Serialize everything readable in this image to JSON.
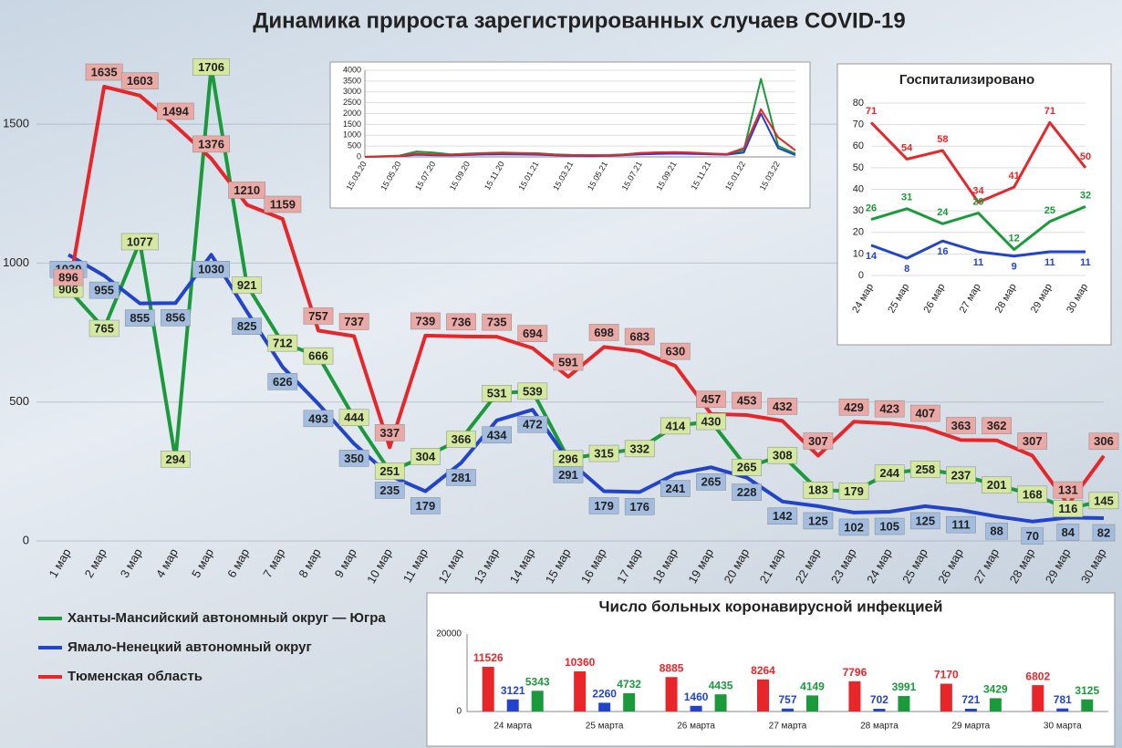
{
  "chart_data": [
    {
      "type": "line",
      "title": "Динамика прироста зарегистрированных случаев COVID-19",
      "categories": [
        "1 мар",
        "2 мар",
        "3 мар",
        "4 мар",
        "5 мар",
        "6 мар",
        "7 мар",
        "8 мар",
        "9 мар",
        "10 мар",
        "11 мар",
        "12 мар",
        "13 мар",
        "14 мар",
        "15 мар",
        "16 мар",
        "17 мар",
        "18 мар",
        "19 мар",
        "20 мар",
        "21 мар",
        "22 мар",
        "23 мар",
        "24 мар",
        "25 мар",
        "26 мар",
        "27 мар",
        "28 мар",
        "29 мар",
        "30 мар"
      ],
      "series": [
        {
          "name": "Ханты-Мансийский автономный округ — Югра",
          "color": "#1a9a3a",
          "values": [
            906,
            765,
            1077,
            294,
            1706,
            921,
            712,
            666,
            444,
            251,
            304,
            366,
            531,
            539,
            296,
            315,
            332,
            414,
            430,
            265,
            308,
            183,
            179,
            244,
            258,
            237,
            201,
            168,
            116,
            145
          ]
        },
        {
          "name": "Ямало-Ненецкий автономный округ",
          "color": "#2244cc",
          "values": [
            1030,
            955,
            855,
            856,
            1030,
            825,
            626,
            493,
            350,
            235,
            179,
            281,
            434,
            472,
            291,
            179,
            176,
            241,
            265,
            228,
            142,
            125,
            102,
            105,
            125,
            111,
            88,
            70,
            84,
            82
          ]
        },
        {
          "name": "Тюменская область",
          "color": "#e8262a",
          "values": [
            896,
            1635,
            1603,
            1494,
            1376,
            1210,
            1159,
            757,
            737,
            337,
            739,
            736,
            735,
            694,
            591,
            698,
            683,
            630,
            457,
            453,
            432,
            307,
            429,
            423,
            407,
            363,
            362,
            307,
            131,
            306
          ]
        }
      ],
      "ylim": [
        0,
        1750
      ],
      "yticks": [
        0,
        500,
        1000,
        1500
      ],
      "grid": true,
      "legend": "bottom-left",
      "data_labels": true
    },
    {
      "type": "line",
      "categories": [
        "15.03.20",
        null,
        "15.05.20",
        null,
        "15.07.20",
        null,
        "15.09.20",
        null,
        "15.11.20",
        null,
        "15.01.21",
        null,
        "15.03.21",
        null,
        "15.05.21",
        null,
        "15.07.21",
        null,
        "15.09.21",
        null,
        "15.11.21",
        null,
        "15.01.22",
        null,
        "15.03.22",
        null
      ],
      "series": [
        {
          "color": "#1a9a3a",
          "values": [
            0,
            30,
            60,
            250,
            200,
            120,
            150,
            180,
            200,
            180,
            170,
            120,
            90,
            80,
            80,
            120,
            180,
            200,
            200,
            180,
            150,
            120,
            300,
            3600,
            500,
            150
          ]
        },
        {
          "color": "#2244cc",
          "values": [
            0,
            10,
            30,
            100,
            80,
            70,
            90,
            110,
            120,
            110,
            100,
            70,
            50,
            40,
            50,
            80,
            120,
            140,
            150,
            140,
            120,
            100,
            200,
            2000,
            400,
            80
          ]
        },
        {
          "color": "#e8262a",
          "values": [
            0,
            20,
            40,
            150,
            120,
            100,
            130,
            170,
            180,
            170,
            150,
            100,
            80,
            70,
            70,
            100,
            180,
            210,
            220,
            200,
            160,
            130,
            400,
            2200,
            900,
            300
          ]
        }
      ],
      "ylim": [
        0,
        4000
      ],
      "yticks": [
        0,
        500,
        1000,
        1500,
        2000,
        2500,
        3000,
        3500,
        4000
      ],
      "grid": true,
      "data_labels": false
    },
    {
      "type": "line",
      "title": "Госпитализировано",
      "categories": [
        "24 мар",
        "25 мар",
        "26 мар",
        "27 мар",
        "28 мар",
        "29 мар",
        "30 мар"
      ],
      "series": [
        {
          "color": "#1a9a3a",
          "values": [
            26,
            31,
            24,
            29,
            12,
            25,
            32
          ]
        },
        {
          "color": "#2244cc",
          "values": [
            14,
            8,
            16,
            11,
            9,
            11,
            11
          ]
        },
        {
          "color": "#e8262a",
          "values": [
            71,
            54,
            58,
            34,
            41,
            71,
            50
          ]
        }
      ],
      "ylim": [
        0,
        80
      ],
      "yticks": [
        0,
        10,
        20,
        30,
        40,
        50,
        60,
        70,
        80
      ],
      "grid": true,
      "data_labels": true
    },
    {
      "type": "bar",
      "title": "Число больных коронавирусной инфекцией",
      "categories": [
        "24 марта",
        "25 марта",
        "26 марта",
        "27 марта",
        "28 марта",
        "29 марта",
        "30 марта"
      ],
      "series": [
        {
          "color": "#e8262a",
          "values": [
            11526,
            10360,
            8885,
            8264,
            7796,
            7170,
            6802
          ]
        },
        {
          "color": "#2244cc",
          "values": [
            3121,
            2260,
            1460,
            757,
            702,
            721,
            781
          ]
        },
        {
          "color": "#1a9a3a",
          "values": [
            5343,
            4732,
            4435,
            4149,
            3991,
            3429,
            3125
          ]
        }
      ],
      "ylim": [
        0,
        20000
      ],
      "yticks": [
        0,
        20000
      ],
      "grid": false,
      "data_labels": true
    }
  ]
}
